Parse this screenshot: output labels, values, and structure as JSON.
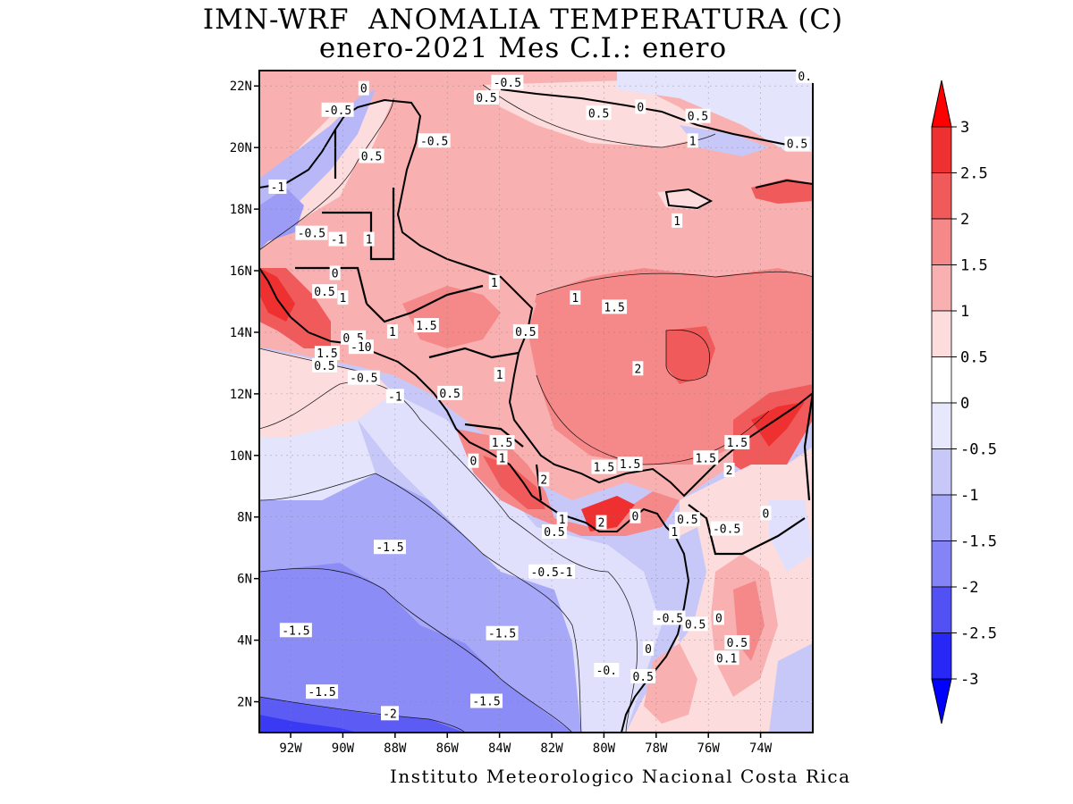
{
  "title": {
    "line1": "IMN-WRF  ANOMALIA TEMPERATURA (C)",
    "line2": "enero-2021 Mes C.I.: enero"
  },
  "footer": "Instituto Meteorologico Nacional Costa Rica",
  "map": {
    "lat_ticks": [
      "2N",
      "4N",
      "6N",
      "8N",
      "10N",
      "12N",
      "14N",
      "16N",
      "18N",
      "20N",
      "22N"
    ],
    "lat_values": [
      2,
      4,
      6,
      8,
      10,
      12,
      14,
      16,
      18,
      20,
      22
    ],
    "lon_ticks": [
      "92W",
      "90W",
      "88W",
      "86W",
      "84W",
      "82W",
      "80W",
      "78W",
      "76W",
      "74W"
    ],
    "lon_values": [
      -92,
      -90,
      -88,
      -86,
      -84,
      -82,
      -80,
      -78,
      -76,
      -74
    ],
    "extent": {
      "lon_min": -93.2,
      "lon_max": -72.0,
      "lat_min": 1.0,
      "lat_max": 22.5
    },
    "contour_labels": [
      {
        "text": "0",
        "lon": -89.2,
        "lat": 21.9
      },
      {
        "text": "-0.5",
        "lon": -83.7,
        "lat": 22.1
      },
      {
        "text": "0.5",
        "lon": -84.5,
        "lat": 21.6
      },
      {
        "text": "-0.5",
        "lon": -90.2,
        "lat": 21.2
      },
      {
        "text": "0.5",
        "lon": -80.2,
        "lat": 21.1
      },
      {
        "text": "0",
        "lon": -78.6,
        "lat": 21.3
      },
      {
        "text": "0.5",
        "lon": -76.4,
        "lat": 21.0
      },
      {
        "text": "1",
        "lon": -76.6,
        "lat": 20.2
      },
      {
        "text": "0.5",
        "lon": -72.6,
        "lat": 20.1
      },
      {
        "text": "0.",
        "lon": -72.3,
        "lat": 22.3
      },
      {
        "text": "-0.5",
        "lon": -86.5,
        "lat": 20.2
      },
      {
        "text": "0.5",
        "lon": -88.9,
        "lat": 19.7
      },
      {
        "text": "-1",
        "lon": -92.5,
        "lat": 18.7
      },
      {
        "text": "1",
        "lon": -77.2,
        "lat": 17.6
      },
      {
        "text": "-0.5",
        "lon": -91.2,
        "lat": 17.2
      },
      {
        "text": "-1",
        "lon": -90.2,
        "lat": 17.0
      },
      {
        "text": "1",
        "lon": -89.0,
        "lat": 17.0
      },
      {
        "text": "0",
        "lon": -90.3,
        "lat": 15.9
      },
      {
        "text": "1",
        "lon": -84.2,
        "lat": 15.6
      },
      {
        "text": "0.5",
        "lon": -90.7,
        "lat": 15.3
      },
      {
        "text": "1",
        "lon": -90.0,
        "lat": 15.1
      },
      {
        "text": "1",
        "lon": -81.1,
        "lat": 15.1
      },
      {
        "text": "1.5",
        "lon": -79.6,
        "lat": 14.8
      },
      {
        "text": "1.5",
        "lon": -86.8,
        "lat": 14.2
      },
      {
        "text": "1",
        "lon": -88.1,
        "lat": 14.0
      },
      {
        "text": "0.5",
        "lon": -83.0,
        "lat": 14.0
      },
      {
        "text": "0.5",
        "lon": -89.6,
        "lat": 13.8
      },
      {
        "text": "-10",
        "lon": -89.3,
        "lat": 13.5
      },
      {
        "text": "1.5",
        "lon": -90.6,
        "lat": 13.3
      },
      {
        "text": "0.5",
        "lon": -90.7,
        "lat": 12.9
      },
      {
        "text": "2",
        "lon": -78.7,
        "lat": 12.8
      },
      {
        "text": "-0.5",
        "lon": -89.2,
        "lat": 12.5
      },
      {
        "text": "1",
        "lon": -84.0,
        "lat": 12.6
      },
      {
        "text": "-1",
        "lon": -88.0,
        "lat": 11.9
      },
      {
        "text": "0.5",
        "lon": -85.9,
        "lat": 12.0
      },
      {
        "text": "1.5",
        "lon": -83.9,
        "lat": 10.4
      },
      {
        "text": "1.5",
        "lon": -74.9,
        "lat": 10.4
      },
      {
        "text": "1",
        "lon": -83.9,
        "lat": 9.9
      },
      {
        "text": "0",
        "lon": -85.0,
        "lat": 9.8
      },
      {
        "text": "1.5",
        "lon": -76.1,
        "lat": 9.9
      },
      {
        "text": "1.5",
        "lon": -80.0,
        "lat": 9.6
      },
      {
        "text": "1.5",
        "lon": -79.0,
        "lat": 9.7
      },
      {
        "text": "2",
        "lon": -75.2,
        "lat": 9.5
      },
      {
        "text": "2",
        "lon": -82.3,
        "lat": 9.2
      },
      {
        "text": "0",
        "lon": -73.8,
        "lat": 8.1
      },
      {
        "text": "1",
        "lon": -81.6,
        "lat": 7.9
      },
      {
        "text": "2",
        "lon": -80.1,
        "lat": 7.8
      },
      {
        "text": "0",
        "lon": -78.8,
        "lat": 8.0
      },
      {
        "text": "0.5",
        "lon": -76.8,
        "lat": 7.9
      },
      {
        "text": "-0.5",
        "lon": -75.3,
        "lat": 7.6
      },
      {
        "text": "0.5",
        "lon": -81.9,
        "lat": 7.5
      },
      {
        "text": "1",
        "lon": -77.3,
        "lat": 7.5
      },
      {
        "text": "-1.5",
        "lon": -88.2,
        "lat": 7.0
      },
      {
        "text": "-0.5-1",
        "lon": -82.0,
        "lat": 6.2
      },
      {
        "text": "-0.5",
        "lon": -77.5,
        "lat": 4.7
      },
      {
        "text": "0.5",
        "lon": -76.5,
        "lat": 4.5
      },
      {
        "text": "0",
        "lon": -75.6,
        "lat": 4.7
      },
      {
        "text": "-1.5",
        "lon": -91.8,
        "lat": 4.3
      },
      {
        "text": "-1.5",
        "lon": -83.9,
        "lat": 4.2
      },
      {
        "text": "0.5",
        "lon": -74.9,
        "lat": 3.9
      },
      {
        "text": "0",
        "lon": -78.3,
        "lat": 3.7
      },
      {
        "text": "0.1",
        "lon": -75.3,
        "lat": 3.4
      },
      {
        "text": "-0.",
        "lon": -79.9,
        "lat": 3.0
      },
      {
        "text": "0.5",
        "lon": -78.5,
        "lat": 2.8
      },
      {
        "text": "-1.5",
        "lon": -90.8,
        "lat": 2.3
      },
      {
        "text": "-1.5",
        "lon": -84.5,
        "lat": 2.0
      },
      {
        "text": "-2",
        "lon": -88.2,
        "lat": 1.6
      }
    ]
  },
  "colorbar": {
    "labels": [
      "3",
      "2.5",
      "2",
      "1.5",
      "1",
      "0.5",
      "0",
      "-0.5",
      "-1",
      "-1.5",
      "-2",
      "-2.5",
      "-3"
    ],
    "colors": [
      "#ee0000",
      "#ee3030",
      "#f05a5a",
      "#f58888",
      "#f8b0b0",
      "#fcdcdc",
      "#ffffff",
      "#e4e4fc",
      "#c8c8f8",
      "#a8a8f8",
      "#8484f6",
      "#5252f4",
      "#2828f6"
    ],
    "top_arrow_color": "#ff0000",
    "bottom_arrow_color": "#0000ff"
  }
}
